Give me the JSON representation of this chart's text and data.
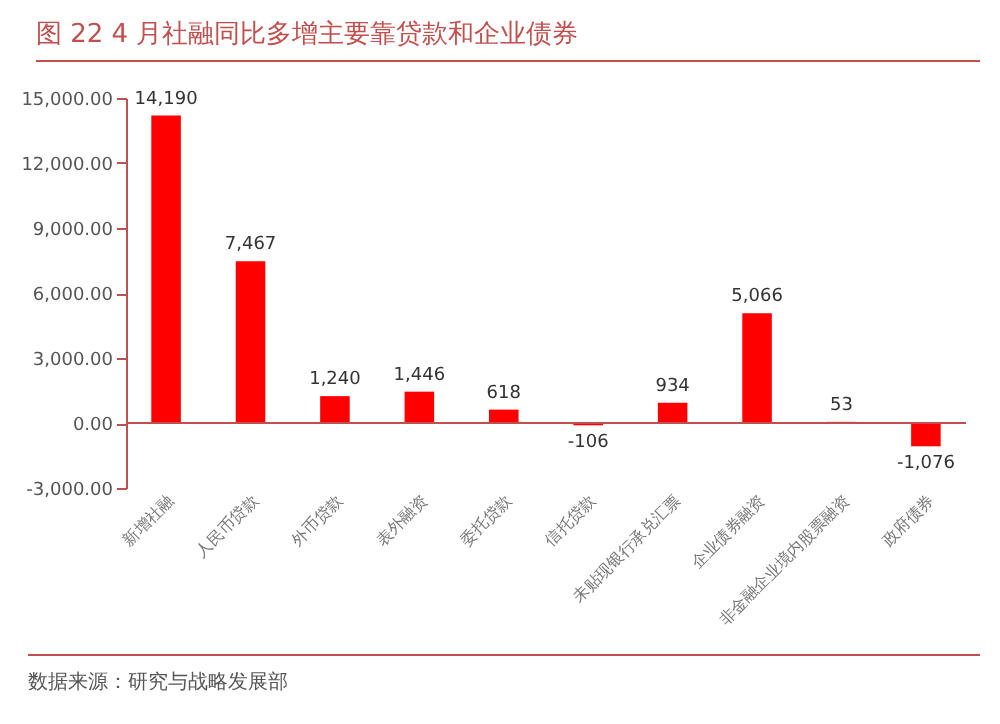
{
  "chart_data": {
    "type": "bar",
    "title": "图 22 4 月社融同比多增主要靠贷款和企业债券",
    "categories": [
      "新增社融",
      "人民币贷款",
      "外币贷款",
      "表外融资",
      "委托贷款",
      "信托贷款",
      "未贴现银行承兑汇票",
      "企业债券融资",
      "非金融企业境内股票融资",
      "政府债券"
    ],
    "values": [
      14190,
      7467,
      1240,
      1446,
      618,
      -106,
      934,
      5066,
      53,
      -1076
    ],
    "value_labels": [
      "14,190",
      "7,467",
      "1,240",
      "1,446",
      "618",
      "-106",
      "934",
      "5,066",
      "53",
      "-1,076"
    ],
    "color": "#ff0000",
    "ylim": [
      -3000,
      15000
    ],
    "yticks": [
      {
        "value": -3000,
        "label": "-3,000.00"
      },
      {
        "value": 0,
        "label": "0.00"
      },
      {
        "value": 3000,
        "label": "3,000.00"
      },
      {
        "value": 6000,
        "label": "6,000.00"
      },
      {
        "value": 9000,
        "label": "9,000.00"
      },
      {
        "value": 12000,
        "label": "12,000.00"
      },
      {
        "value": 15000,
        "label": "15,000.00"
      }
    ],
    "grid": false,
    "ref_lines": [
      {
        "axis": "y",
        "value": 0,
        "color": "#c0504d"
      }
    ],
    "annotations": [
      "数据来源：研究与战略发展部"
    ]
  }
}
